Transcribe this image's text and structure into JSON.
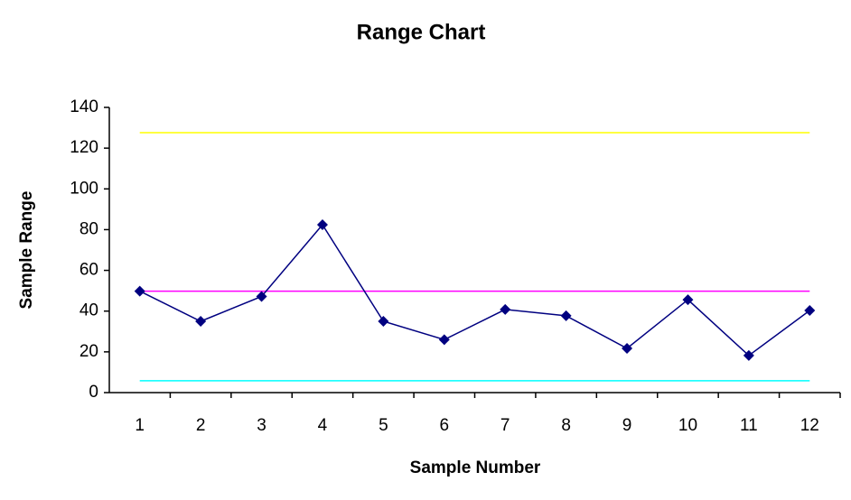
{
  "chart_data": {
    "type": "line",
    "title": "Range Chart",
    "x_label": "Sample Number",
    "y_label": "Sample Range",
    "categories": [
      "1",
      "2",
      "3",
      "4",
      "5",
      "6",
      "7",
      "8",
      "9",
      "10",
      "11",
      "12"
    ],
    "series": [
      {
        "color": "#ffff00",
        "values": [
          127.6,
          127.6,
          127.6,
          127.6,
          127.6,
          127.6,
          127.6,
          127.6,
          127.6,
          127.6,
          127.6,
          127.6
        ]
      },
      {
        "color": "#ff00ff",
        "values": [
          49.8,
          49.8,
          49.8,
          49.8,
          49.8,
          49.8,
          49.8,
          49.8,
          49.8,
          49.8,
          49.8,
          49.8
        ]
      },
      {
        "color": "#00ffff",
        "values": [
          5.8,
          5.8,
          5.8,
          5.8,
          5.8,
          5.8,
          5.8,
          5.8,
          5.8,
          5.8,
          5.8,
          5.8
        ]
      },
      {
        "color": "#000080",
        "marker": "diamond",
        "values": [
          49.8,
          35,
          47.2,
          82.4,
          35,
          26,
          40.8,
          37.7,
          21.7,
          45.6,
          18.2,
          40.3
        ]
      }
    ],
    "ylim": [
      0,
      140
    ],
    "yticks": [
      0,
      20,
      40,
      60,
      80,
      100,
      120,
      140
    ],
    "grid": false
  }
}
